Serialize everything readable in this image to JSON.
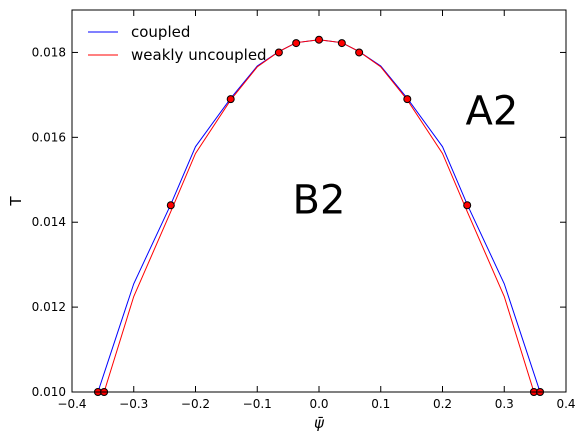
{
  "chart_data": {
    "type": "line",
    "xlabel": "ψ̄",
    "ylabel": "T",
    "xlim": [
      -0.4,
      0.4
    ],
    "ylim": [
      0.01,
      0.019
    ],
    "x_ticks": [
      "−0.4",
      "−0.3",
      "−0.2",
      "−0.1",
      "0.0",
      "0.1",
      "0.2",
      "0.3",
      "0.4"
    ],
    "x_tick_values": [
      -0.4,
      -0.3,
      -0.2,
      -0.1,
      0.0,
      0.1,
      0.2,
      0.3,
      0.4
    ],
    "y_ticks": [
      "0.010",
      "0.012",
      "0.014",
      "0.016",
      "0.018"
    ],
    "y_tick_values": [
      0.01,
      0.012,
      0.014,
      0.016,
      0.018
    ],
    "grid": false,
    "legend_position": "top-left",
    "series": [
      {
        "name": "coupled",
        "color": "#0000ff",
        "x": [
          -0.358,
          -0.3,
          -0.24,
          -0.2,
          -0.143,
          -0.1,
          -0.065,
          -0.037,
          0.0,
          0.037,
          0.065,
          0.1,
          0.143,
          0.2,
          0.24,
          0.3,
          0.358
        ],
        "y": [
          0.01,
          0.01255,
          0.01442,
          0.01578,
          0.01692,
          0.01768,
          0.01802,
          0.01823,
          0.0183,
          0.01823,
          0.01802,
          0.01768,
          0.01692,
          0.01578,
          0.01442,
          0.01255,
          0.01
        ]
      },
      {
        "name": "weakly uncoupled",
        "color": "#ff0000",
        "x": [
          -0.348,
          -0.3,
          -0.24,
          -0.2,
          -0.143,
          -0.1,
          -0.065,
          -0.037,
          0.0,
          0.037,
          0.065,
          0.1,
          0.143,
          0.2,
          0.24,
          0.3,
          0.348
        ],
        "y": [
          0.01,
          0.01225,
          0.01425,
          0.01562,
          0.01688,
          0.01766,
          0.01802,
          0.01823,
          0.0183,
          0.01823,
          0.01802,
          0.01766,
          0.01688,
          0.01562,
          0.01425,
          0.01225,
          0.01
        ]
      }
    ],
    "points": {
      "x": [
        -0.358,
        -0.348,
        -0.24,
        -0.143,
        -0.065,
        -0.037,
        0.0,
        0.037,
        0.065,
        0.143,
        0.24,
        0.348,
        0.358
      ],
      "y": [
        0.01,
        0.01,
        0.0144,
        0.0169,
        0.018,
        0.01822,
        0.0183,
        0.01822,
        0.018,
        0.0169,
        0.0144,
        0.01,
        0.01
      ],
      "fill": "#ff0000",
      "stroke": "#000000"
    },
    "annotations": [
      {
        "text": "A2",
        "x": 0.28,
        "y": 0.0163
      },
      {
        "text": "B2",
        "x": 0.0,
        "y": 0.0142
      }
    ]
  }
}
